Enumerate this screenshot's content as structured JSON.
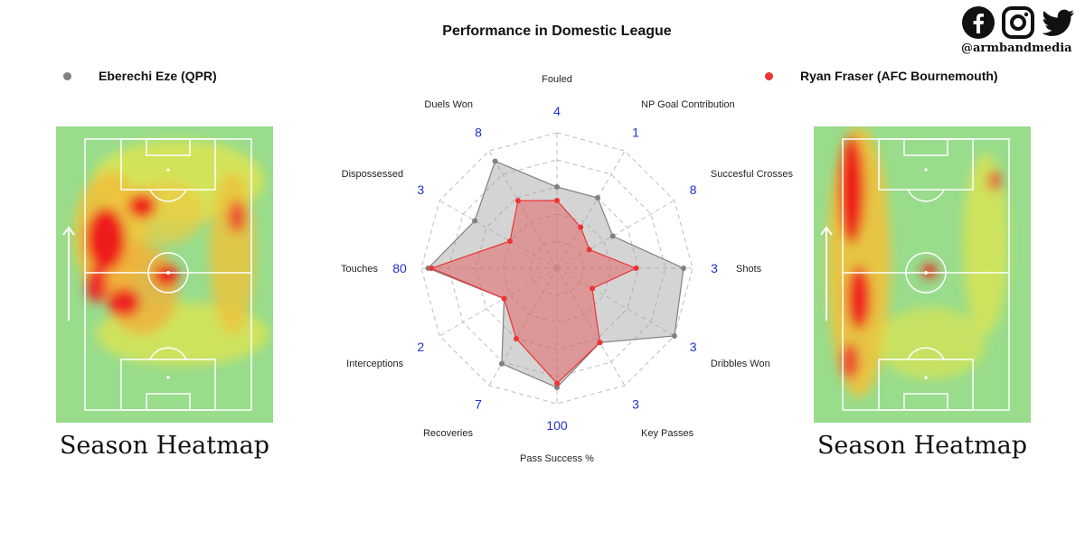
{
  "title": "Performance in Domestic League",
  "social": {
    "handle": "@armbandmedia",
    "icons": [
      "facebook-icon",
      "instagram-icon",
      "twitter-icon"
    ]
  },
  "players": [
    {
      "name": "Eberechi Eze (QPR)",
      "color": "#808080"
    },
    {
      "name": "Ryan Fraser (AFC Bournemouth)",
      "color": "#ee3333"
    }
  ],
  "heatmap_caption": "Season Heatmap",
  "chart_data": {
    "type": "radar",
    "title": "Performance in Domestic League",
    "axes": [
      {
        "label": "Fouled",
        "max": 4
      },
      {
        "label": "NP Goal Contribution",
        "max": 1
      },
      {
        "label": "Succesful Crosses",
        "max": 8
      },
      {
        "label": "Shots",
        "max": 3
      },
      {
        "label": "Dribbles Won",
        "max": 3
      },
      {
        "label": "Key Passes",
        "max": 3
      },
      {
        "label": "Pass Success %",
        "max": 100
      },
      {
        "label": "Recoveries",
        "max": 7
      },
      {
        "label": "Interceptions",
        "max": 2
      },
      {
        "label": "Touches",
        "max": 80
      },
      {
        "label": "Dispossessed",
        "max": 3
      },
      {
        "label": "Duels Won",
        "max": 8
      }
    ],
    "series": [
      {
        "name": "Eberechi Eze (QPR)",
        "color": "#808080",
        "values": [
          2.4,
          0.6,
          3.8,
          2.8,
          3.0,
          1.9,
          88,
          5.7,
          0.9,
          76,
          2.1,
          7.3
        ]
      },
      {
        "name": "Ryan Fraser (AFC Bournemouth)",
        "color": "#ee3333",
        "values": [
          2.0,
          0.35,
          2.2,
          1.75,
          0.9,
          1.9,
          85,
          4.2,
          0.9,
          74,
          1.2,
          4.6
        ]
      }
    ],
    "grid_rings": 5,
    "grid": true
  }
}
